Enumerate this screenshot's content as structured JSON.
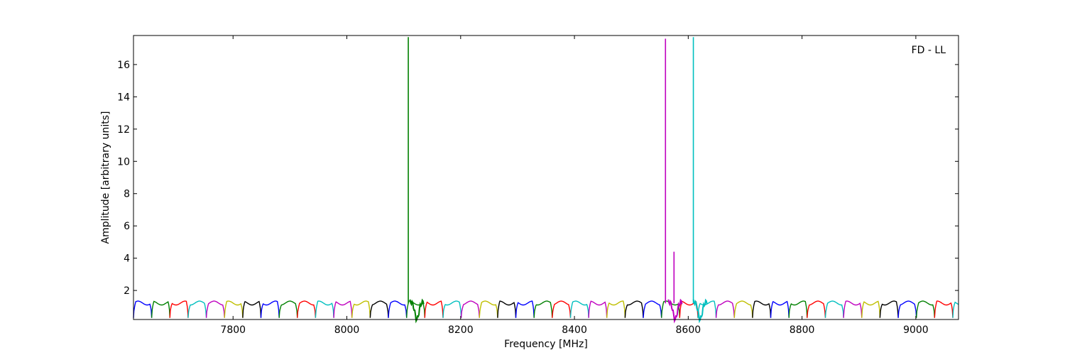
{
  "chart_data": {
    "type": "line",
    "title": "",
    "annotation": "FD - LL",
    "xlabel": "Frequency [MHz]",
    "ylabel": "Amplitude [arbitrary units]",
    "xlim": [
      7625,
      9075
    ],
    "ylim": [
      0.2,
      17.8
    ],
    "xticks": [
      7800,
      8000,
      8200,
      8400,
      8600,
      8800,
      9000
    ],
    "yticks": [
      2,
      4,
      6,
      8,
      10,
      12,
      14,
      16
    ],
    "grid": false,
    "legend": "none",
    "channel_width_mhz": 32,
    "channel_start_mhz": 7625,
    "channel_colors": [
      "#0000ff",
      "#008000",
      "#ff0000",
      "#00bfbf",
      "#bf00bf",
      "#bfbf00",
      "#000000"
    ],
    "band_profile": {
      "edge_min": 0.3,
      "plateau_low": 1.1,
      "plateau_high": 1.4
    },
    "spikes": [
      {
        "x": 8108,
        "value": 17.7,
        "color": "#008000"
      },
      {
        "x": 8560,
        "value": 17.6,
        "color": "#bf00bf"
      },
      {
        "x": 8575,
        "value": 4.4,
        "color": "#bf00bf"
      },
      {
        "x": 8609,
        "value": 17.7,
        "color": "#00bfbf"
      }
    ],
    "dips": [
      {
        "x": 8123,
        "value": 0.2,
        "color": "#008000"
      },
      {
        "x": 8577,
        "value": 0.2,
        "color": "#bf00bf"
      },
      {
        "x": 8621,
        "value": 0.2,
        "color": "#00bfbf"
      }
    ]
  }
}
